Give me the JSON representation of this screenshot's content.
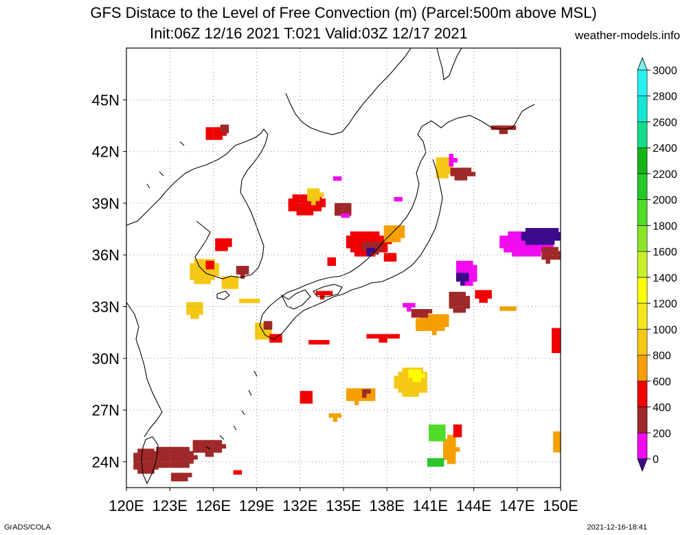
{
  "title": {
    "line1": "GFS Distace to the Level of Free Convection (m) (Parcel:500m above MSL)",
    "line2": "Init:06Z 12/16 2021 T:021 Valid:03Z 12/17 2021",
    "site": "weather-models.info"
  },
  "footer": {
    "left": "GrADS/COLA",
    "right": "2021-12-16-18:41"
  },
  "map": {
    "lon_range": [
      120,
      150
    ],
    "lat_range": [
      22.5,
      48
    ],
    "lon_ticks": [
      "120E",
      "123E",
      "126E",
      "129E",
      "132E",
      "135E",
      "138E",
      "141E",
      "144E",
      "147E",
      "150E"
    ],
    "lat_ticks": [
      "24N",
      "27N",
      "30N",
      "33N",
      "36N",
      "39N",
      "42N",
      "45N"
    ],
    "grid": true
  },
  "colorbar": {
    "labels": [
      "0",
      "200",
      "400",
      "600",
      "800",
      "1000",
      "1200",
      "1400",
      "1600",
      "1800",
      "2000",
      "2200",
      "2400",
      "2600",
      "2800",
      "3000"
    ],
    "colors": [
      "#3c0a8c",
      "#f20af2",
      "#a02828",
      "#f00000",
      "#f5a000",
      "#f5c814",
      "#f5e61e",
      "#ffff00",
      "#c8f028",
      "#8ce628",
      "#50dc28",
      "#28c828",
      "#14b414",
      "#14dc8c",
      "#14e6d2",
      "#28f0f0"
    ],
    "low_arrow_color": "#3c0a8c",
    "high_arrow_color": "#7cf0e6"
  },
  "field": {
    "description_units": "m",
    "blobs": [
      {
        "lon": 121.2,
        "lat": 24.2,
        "w": 2.0,
        "h": 1.6,
        "c": 2
      },
      {
        "lon": 123.0,
        "lat": 24.4,
        "w": 3.6,
        "h": 1.4,
        "c": 2
      },
      {
        "lon": 125.5,
        "lat": 25.0,
        "w": 2.4,
        "h": 1.0,
        "c": 2
      },
      {
        "lon": 123.6,
        "lat": 23.3,
        "w": 1.6,
        "h": 0.6,
        "c": 2
      },
      {
        "lon": 124.5,
        "lat": 33.0,
        "w": 1.3,
        "h": 1.0,
        "c": 5
      },
      {
        "lon": 125.2,
        "lat": 35.2,
        "w": 2.2,
        "h": 1.6,
        "c": 5
      },
      {
        "lon": 125.6,
        "lat": 35.6,
        "w": 0.8,
        "h": 0.6,
        "c": 3
      },
      {
        "lon": 126.5,
        "lat": 36.8,
        "w": 1.3,
        "h": 0.8,
        "c": 3
      },
      {
        "lon": 127.0,
        "lat": 34.5,
        "w": 1.4,
        "h": 1.0,
        "c": 5
      },
      {
        "lon": 127.8,
        "lat": 35.2,
        "w": 1.0,
        "h": 0.8,
        "c": 2
      },
      {
        "lon": 128.3,
        "lat": 33.5,
        "w": 1.6,
        "h": 0.4,
        "c": 5
      },
      {
        "lon": 129.3,
        "lat": 31.7,
        "w": 1.4,
        "h": 1.2,
        "c": 5
      },
      {
        "lon": 129.6,
        "lat": 32.1,
        "w": 0.8,
        "h": 0.6,
        "c": 2
      },
      {
        "lon": 130.1,
        "lat": 31.3,
        "w": 1.0,
        "h": 0.7,
        "c": 3
      },
      {
        "lon": 126.0,
        "lat": 43.2,
        "w": 1.6,
        "h": 0.9,
        "c": 3
      },
      {
        "lon": 126.6,
        "lat": 43.5,
        "w": 0.8,
        "h": 0.6,
        "c": 2
      },
      {
        "lon": 132.3,
        "lat": 39.1,
        "w": 2.8,
        "h": 1.3,
        "c": 3
      },
      {
        "lon": 132.8,
        "lat": 39.6,
        "w": 1.2,
        "h": 1.0,
        "c": 5
      },
      {
        "lon": 134.8,
        "lat": 38.8,
        "w": 1.4,
        "h": 0.9,
        "c": 2
      },
      {
        "lon": 135.0,
        "lat": 38.4,
        "w": 0.9,
        "h": 0.5,
        "c": 1
      },
      {
        "lon": 136.5,
        "lat": 36.8,
        "w": 3.2,
        "h": 1.6,
        "c": 3
      },
      {
        "lon": 136.8,
        "lat": 36.6,
        "w": 1.6,
        "h": 0.8,
        "c": 2
      },
      {
        "lon": 136.6,
        "lat": 36.4,
        "w": 0.6,
        "h": 0.5,
        "c": 0
      },
      {
        "lon": 138.3,
        "lat": 37.4,
        "w": 1.6,
        "h": 1.1,
        "c": 4
      },
      {
        "lon": 138.0,
        "lat": 36.0,
        "w": 1.0,
        "h": 0.7,
        "c": 3
      },
      {
        "lon": 134.0,
        "lat": 35.8,
        "w": 0.8,
        "h": 0.6,
        "c": 3
      },
      {
        "lon": 133.5,
        "lat": 33.9,
        "w": 1.4,
        "h": 0.5,
        "c": 3
      },
      {
        "lon": 141.8,
        "lat": 41.2,
        "w": 1.4,
        "h": 1.4,
        "c": 5
      },
      {
        "lon": 143.0,
        "lat": 40.9,
        "w": 1.8,
        "h": 0.8,
        "c": 2
      },
      {
        "lon": 142.3,
        "lat": 41.7,
        "w": 0.6,
        "h": 0.8,
        "c": 1
      },
      {
        "lon": 145.8,
        "lat": 43.5,
        "w": 1.8,
        "h": 0.5,
        "c": 2
      },
      {
        "lon": 147.5,
        "lat": 36.8,
        "w": 4.0,
        "h": 1.6,
        "c": 1
      },
      {
        "lon": 148.5,
        "lat": 37.2,
        "w": 3.0,
        "h": 1.2,
        "c": 0
      },
      {
        "lon": 149.2,
        "lat": 36.2,
        "w": 1.6,
        "h": 1.0,
        "c": 2
      },
      {
        "lon": 143.3,
        "lat": 35.1,
        "w": 1.6,
        "h": 1.6,
        "c": 1
      },
      {
        "lon": 143.0,
        "lat": 34.8,
        "w": 1.0,
        "h": 0.8,
        "c": 0
      },
      {
        "lon": 142.8,
        "lat": 33.4,
        "w": 1.6,
        "h": 1.4,
        "c": 2
      },
      {
        "lon": 144.5,
        "lat": 33.8,
        "w": 1.4,
        "h": 0.8,
        "c": 3
      },
      {
        "lon": 141.0,
        "lat": 32.2,
        "w": 2.6,
        "h": 1.2,
        "c": 4
      },
      {
        "lon": 140.2,
        "lat": 32.8,
        "w": 1.6,
        "h": 0.6,
        "c": 2
      },
      {
        "lon": 139.3,
        "lat": 33.2,
        "w": 1.0,
        "h": 0.5,
        "c": 1
      },
      {
        "lon": 137.5,
        "lat": 31.4,
        "w": 2.4,
        "h": 0.5,
        "c": 3
      },
      {
        "lon": 133.1,
        "lat": 31.1,
        "w": 1.6,
        "h": 0.4,
        "c": 3
      },
      {
        "lon": 139.5,
        "lat": 28.8,
        "w": 2.6,
        "h": 1.8,
        "c": 5
      },
      {
        "lon": 139.8,
        "lat": 29.2,
        "w": 1.2,
        "h": 0.8,
        "c": 7
      },
      {
        "lon": 136.0,
        "lat": 28.0,
        "w": 2.2,
        "h": 1.0,
        "c": 4
      },
      {
        "lon": 136.4,
        "lat": 28.2,
        "w": 0.8,
        "h": 0.5,
        "c": 2
      },
      {
        "lon": 132.2,
        "lat": 27.9,
        "w": 1.0,
        "h": 0.9,
        "c": 3
      },
      {
        "lon": 134.2,
        "lat": 26.8,
        "w": 1.0,
        "h": 0.5,
        "c": 4
      },
      {
        "lon": 142.2,
        "lat": 24.9,
        "w": 1.2,
        "h": 1.8,
        "c": 4
      },
      {
        "lon": 141.3,
        "lat": 25.8,
        "w": 1.4,
        "h": 1.2,
        "c": 10
      },
      {
        "lon": 141.2,
        "lat": 24.1,
        "w": 1.4,
        "h": 0.7,
        "c": 11
      },
      {
        "lon": 142.7,
        "lat": 26.0,
        "w": 0.8,
        "h": 0.8,
        "c": 3
      },
      {
        "lon": 149.6,
        "lat": 25.3,
        "w": 0.8,
        "h": 1.4,
        "c": 4
      },
      {
        "lon": 149.5,
        "lat": 31.2,
        "w": 0.8,
        "h": 1.6,
        "c": 3
      },
      {
        "lon": 146.2,
        "lat": 33.1,
        "w": 1.4,
        "h": 0.3,
        "c": 4
      },
      {
        "lon": 127.5,
        "lat": 23.5,
        "w": 0.8,
        "h": 0.5,
        "c": 3
      },
      {
        "lon": 134.3,
        "lat": 40.6,
        "w": 0.6,
        "h": 0.4,
        "c": 1
      },
      {
        "lon": 138.5,
        "lat": 39.4,
        "w": 0.6,
        "h": 0.4,
        "c": 1
      }
    ]
  }
}
